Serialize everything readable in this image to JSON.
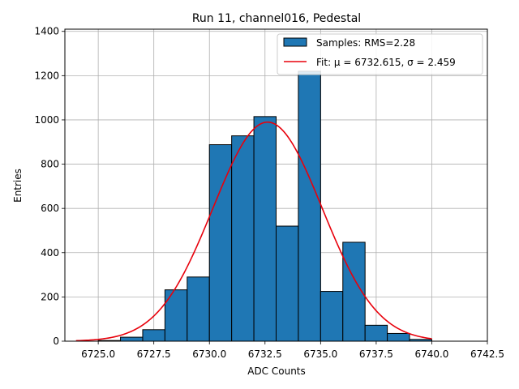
{
  "chart_data": {
    "type": "bar",
    "title": "Run 11, channel016, Pedestal",
    "xlabel": "ADC Counts",
    "ylabel": "Entries",
    "xlim": [
      6723.5,
      6742.5
    ],
    "ylim": [
      0,
      1410
    ],
    "xticks": [
      6725.0,
      6727.5,
      6730.0,
      6732.5,
      6735.0,
      6737.5,
      6740.0,
      6742.5
    ],
    "xtick_labels": [
      "6725.0",
      "6727.5",
      "6730.0",
      "6732.5",
      "6735.0",
      "6737.5",
      "6740.0",
      "6742.5"
    ],
    "yticks": [
      0,
      200,
      400,
      600,
      800,
      1000,
      1200,
      1400
    ],
    "ytick_labels": [
      "0",
      "200",
      "400",
      "600",
      "800",
      "1000",
      "1200",
      "1400"
    ],
    "grid": true,
    "legend_position": "top-right",
    "histogram": {
      "name": "Samples: RMS=2.28",
      "color": "#1f77b4",
      "edge_color": "#000000",
      "bin_edges": [
        6725,
        6726,
        6727,
        6728,
        6729,
        6730,
        6731,
        6732,
        6733,
        6734,
        6735,
        6736,
        6737,
        6738,
        6739,
        6740
      ],
      "counts": [
        3,
        18,
        52,
        232,
        290,
        888,
        928,
        1015,
        520,
        1220,
        225,
        447,
        72,
        35,
        8
      ]
    },
    "fit": {
      "name": "Fit: μ = 6732.615, σ = 2.459",
      "color": "#e8000b",
      "mu": 6732.615,
      "sigma": 2.459,
      "amplitude": 990,
      "x_range": [
        6724.0,
        6740.0
      ]
    }
  }
}
